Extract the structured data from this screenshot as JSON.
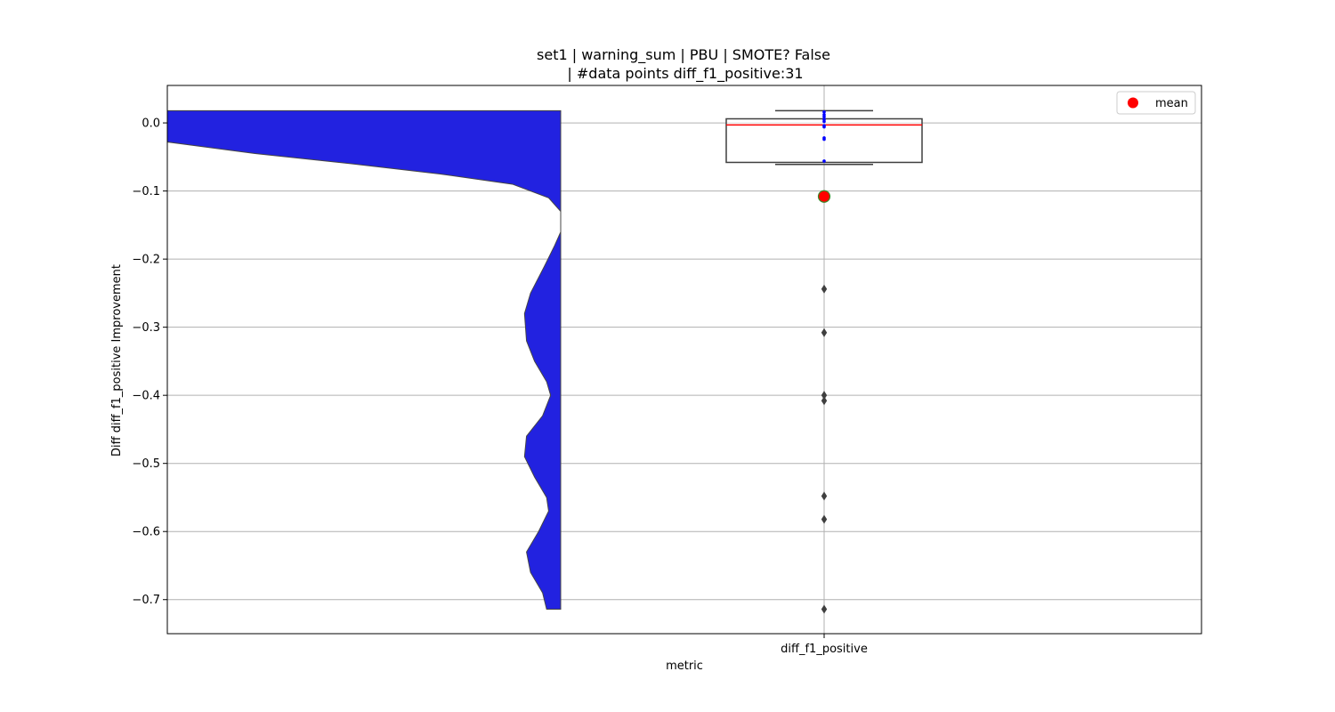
{
  "chart_data": {
    "type": "violin_box",
    "title_line1": "set1 | warning_sum | PBU | SMOTE? False",
    "title_line2": "| #data points diff_f1_positive:31",
    "xlabel": "metric",
    "ylabel": "Diff diff_f1_positive Improvement",
    "categories": [
      "diff_f1_positive"
    ],
    "ylim": [
      -0.75,
      0.055
    ],
    "yticks": [
      0.0,
      -0.1,
      -0.2,
      -0.3,
      -0.4,
      -0.5,
      -0.6,
      -0.7
    ],
    "ytick_labels": [
      "0.0",
      "−0.1",
      "−0.2",
      "−0.3",
      "−0.4",
      "−0.5",
      "−0.6",
      "−0.7"
    ],
    "grid": true,
    "legend": {
      "position": "upper right",
      "entries": [
        {
          "label": "mean",
          "marker": "circle",
          "color": "#ff0000"
        }
      ]
    },
    "violin": {
      "color": "#2222e0",
      "orientation": "half-left",
      "range": [
        -0.714,
        0.018
      ],
      "density_profile": [
        [
          0.018,
          0.0
        ],
        [
          -0.028,
          0.0
        ],
        [
          -0.045,
          0.24
        ],
        [
          -0.06,
          0.48
        ],
        [
          -0.075,
          0.7
        ],
        [
          -0.09,
          0.88
        ],
        [
          -0.11,
          0.97
        ],
        [
          -0.13,
          1.0
        ],
        [
          -0.16,
          1.0
        ],
        [
          -0.18,
          0.985
        ],
        [
          -0.21,
          0.96
        ],
        [
          -0.25,
          0.925
        ],
        [
          -0.28,
          0.91
        ],
        [
          -0.32,
          0.915
        ],
        [
          -0.35,
          0.935
        ],
        [
          -0.38,
          0.965
        ],
        [
          -0.4,
          0.975
        ],
        [
          -0.43,
          0.955
        ],
        [
          -0.46,
          0.915
        ],
        [
          -0.49,
          0.91
        ],
        [
          -0.52,
          0.935
        ],
        [
          -0.55,
          0.965
        ],
        [
          -0.57,
          0.97
        ],
        [
          -0.6,
          0.945
        ],
        [
          -0.63,
          0.915
        ],
        [
          -0.66,
          0.925
        ],
        [
          -0.69,
          0.955
        ],
        [
          -0.714,
          0.965
        ]
      ]
    },
    "box": {
      "q1": -0.058,
      "median": -0.003,
      "q3": 0.006,
      "whisker_low": -0.061,
      "whisker_high": 0.018,
      "median_color": "#ff0000"
    },
    "mean": -0.108,
    "mean_color": "#ff0000",
    "inner_points": [
      0.016,
      0.012,
      0.009,
      0.005,
      0.002,
      -0.004,
      -0.006,
      -0.022,
      -0.024,
      -0.056
    ],
    "inner_points_color": "#0000ff",
    "outliers": [
      -0.244,
      -0.308,
      -0.4,
      -0.408,
      -0.548,
      -0.582,
      -0.714
    ]
  }
}
